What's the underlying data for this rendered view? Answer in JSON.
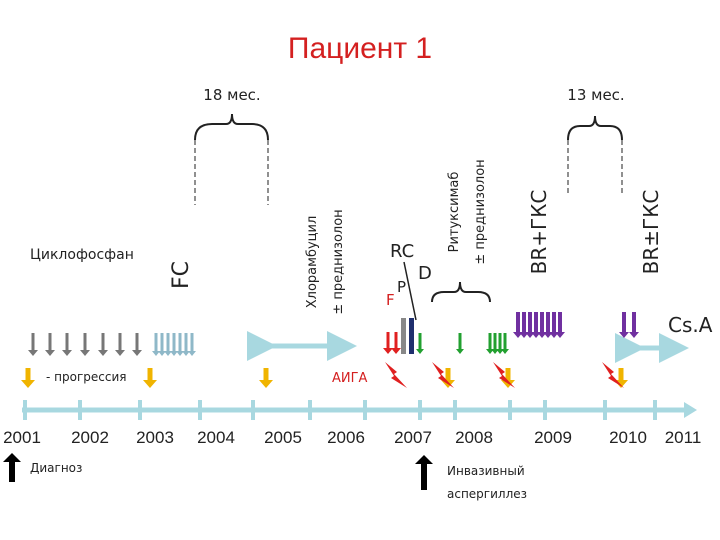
{
  "title": "Пациент 1",
  "periods": [
    "18 мес.",
    "13 мес."
  ],
  "therapies": {
    "cyclophosphamide": "Циклофосфан",
    "fc": "FC",
    "chlorambucil": [
      "Хлорамбуцил",
      "± преднизолон"
    ],
    "rituximab": [
      "Ритуксимаб",
      "± преднизолон"
    ],
    "br1": "BR+ГКС",
    "br2": "BR±ГКС",
    "rc": "RC",
    "d": "D",
    "p": "P",
    "f": "F",
    "csa": "Cs.A"
  },
  "legend": {
    "progression": "- прогрессия",
    "aiha": "АИГА",
    "diagnosis": "Диагноз",
    "aspergillosis": [
      "Инвазивный",
      "аспергиллез"
    ]
  },
  "years": [
    "2001",
    "2002",
    "2003",
    "2004",
    "2005",
    "2006",
    "2007",
    "2008",
    "2009",
    "2010",
    "2011"
  ]
}
